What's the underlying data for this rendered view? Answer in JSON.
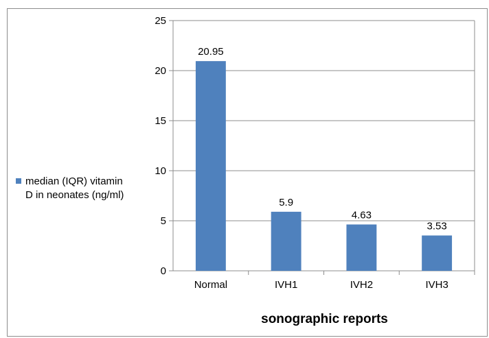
{
  "chart_data": {
    "type": "bar",
    "categories": [
      "Normal",
      "IVH1",
      "IVH2",
      "IVH3"
    ],
    "series": [
      {
        "name": "median (IQR) vitamin D in neonates (ng/ml)",
        "legend_lines": [
          "median (IQR) vitamin",
          "D in neonates (ng/ml)"
        ],
        "values": [
          20.95,
          5.9,
          4.63,
          3.53
        ],
        "data_labels": [
          "20.95",
          "5.9",
          "4.63",
          "3.53"
        ],
        "color": "#4f81bd"
      }
    ],
    "title": "",
    "xlabel": "sonographic reports",
    "ylabel": "",
    "ylim": [
      0,
      25
    ],
    "yticks": [
      0,
      5,
      10,
      15,
      20,
      25
    ],
    "grid": "horizontal",
    "legend_position": "left"
  }
}
